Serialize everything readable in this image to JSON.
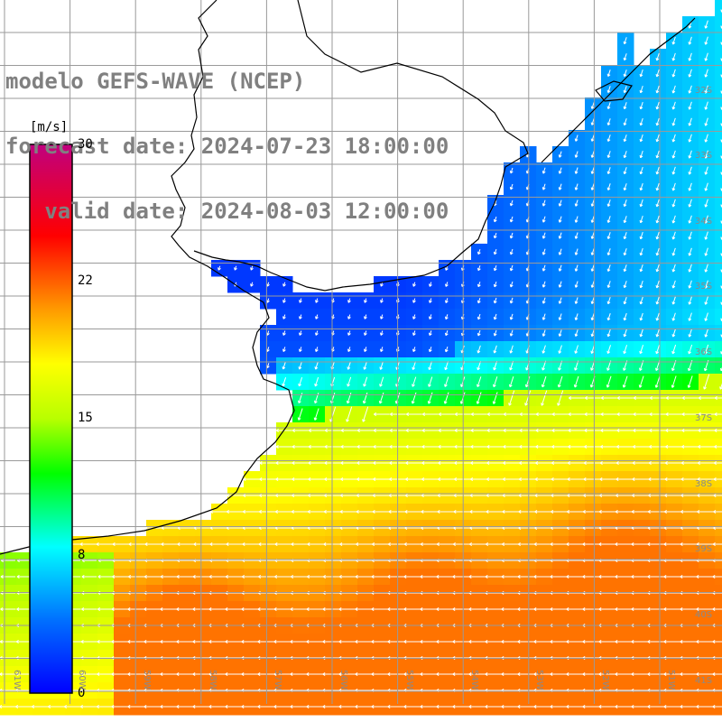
{
  "title": {
    "line1": "modelo GEFS-WAVE (NCEP)",
    "line2": "forecast date: 2024-07-23 18:00:00",
    "line3": "   valid date: 2024-08-03 12:00:00"
  },
  "colorbar": {
    "unit": "[m/s]",
    "ticks": [
      "30",
      "22",
      "15",
      "8",
      "0"
    ],
    "tick_values": [
      30,
      22,
      15,
      8,
      0
    ],
    "stops": [
      {
        "v": 0,
        "color": "#0000ff"
      },
      {
        "v": 4,
        "color": "#0070ff"
      },
      {
        "v": 8,
        "color": "#00ffff"
      },
      {
        "v": 12,
        "color": "#00ff00"
      },
      {
        "v": 15,
        "color": "#b8ff00"
      },
      {
        "v": 18,
        "color": "#ffff00"
      },
      {
        "v": 21,
        "color": "#ff9900"
      },
      {
        "v": 25,
        "color": "#ff0000"
      },
      {
        "v": 30,
        "color": "#c0007f"
      }
    ]
  },
  "lat_labels": [
    "32S",
    "33S",
    "34S",
    "35S",
    "36S",
    "37S",
    "38S",
    "39S",
    "40S",
    "41S"
  ],
  "lon_labels": [
    "61W",
    "60W",
    "59W",
    "58W",
    "57W",
    "56W",
    "55W",
    "54W",
    "53W",
    "52W",
    "51W"
  ],
  "colors": {
    "land": "#ffffff",
    "grid": "#9a9a9a",
    "coast": "#000000",
    "arrow": "#ffffff"
  }
}
